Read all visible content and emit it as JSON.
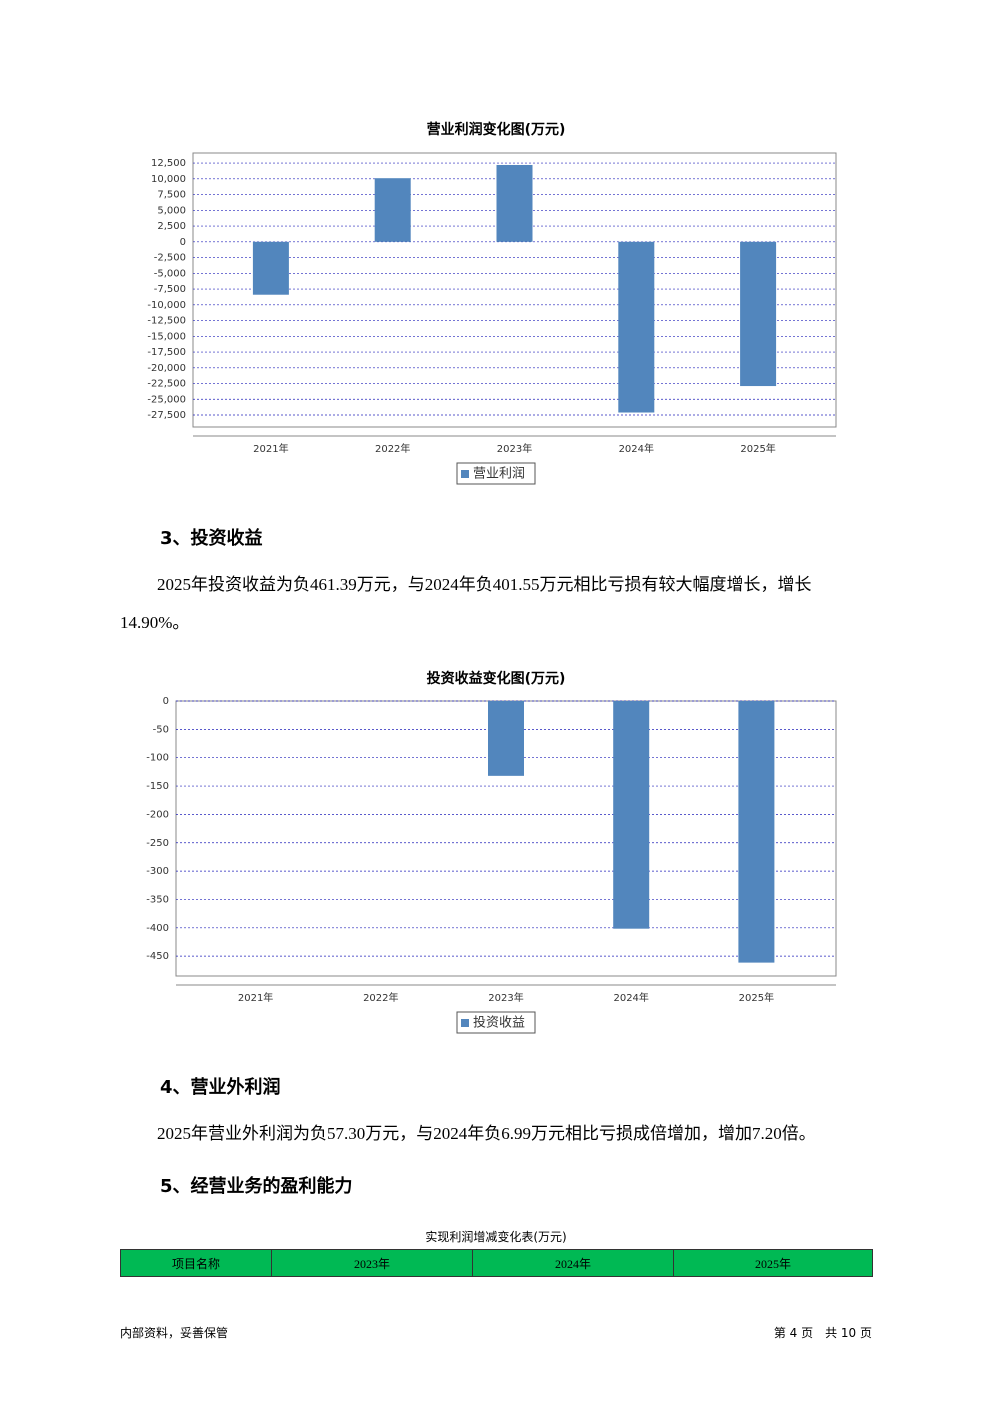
{
  "chart_data": [
    {
      "type": "bar",
      "title": "营业利润变化图(万元)",
      "categories": [
        "2021年",
        "2022年",
        "2023年",
        "2024年",
        "2025年"
      ],
      "series": [
        {
          "name": "营业利润",
          "color": "#5286bd",
          "values": [
            -8400,
            10100,
            12200,
            -27100,
            -22900
          ]
        }
      ],
      "ylim": [
        -29400,
        14100
      ],
      "yticks": [
        {
          "value": 12500,
          "label": "12,500"
        },
        {
          "value": 10000,
          "label": "10,000"
        },
        {
          "value": 7500,
          "label": "7,500"
        },
        {
          "value": 5000,
          "label": "5,000"
        },
        {
          "value": 2500,
          "label": "2,500"
        },
        0,
        {
          "value": -2500,
          "label": "-2,500"
        },
        {
          "value": -5000,
          "label": "-5,000"
        },
        {
          "value": -7500,
          "label": "-7,500"
        },
        {
          "value": -10000,
          "label": "-10,000"
        },
        {
          "value": -12500,
          "label": "-12,500"
        },
        {
          "value": -15000,
          "label": "-15,000"
        },
        {
          "value": -17500,
          "label": "-17,500"
        },
        {
          "value": -20000,
          "label": "-20,000"
        },
        {
          "value": -22500,
          "label": "-22,500"
        },
        {
          "value": -25000,
          "label": "-25,000"
        },
        {
          "value": -27500,
          "label": "-27,500"
        }
      ],
      "grid": true
    },
    {
      "type": "bar",
      "title": "投资收益变化图(万元)",
      "categories": [
        "2021年",
        "2022年",
        "2023年",
        "2024年",
        "2025年"
      ],
      "series": [
        {
          "name": "投资收益",
          "color": "#5286bd",
          "values": [
            null,
            null,
            -132,
            -401.55,
            -461.39
          ]
        }
      ],
      "ylim": [
        -485,
        0
      ],
      "yticks": [
        0,
        -50,
        -100,
        -150,
        -200,
        -250,
        -300,
        -350,
        -400,
        -450
      ],
      "grid": true
    }
  ],
  "sections": [
    {
      "heading": "3、投资收益",
      "text": "2025年投资收益为负461.39万元，与2024年负401.55万元相比亏损有较大幅度增长，增长14.90%。"
    },
    {
      "heading": "4、营业外利润",
      "text": "2025年营业外利润为负57.30万元，与2024年负6.99万元相比亏损成倍增加，增加7.20倍。"
    },
    {
      "heading": "5、经营业务的盈利能力"
    }
  ],
  "table": {
    "caption": "实现利润增减变化表(万元)",
    "header": [
      "项目名称",
      "2023年",
      "2024年",
      "2025年"
    ]
  },
  "footer": {
    "left": "内部资料，妥善保管",
    "right": "第 4 页　共 10 页"
  }
}
